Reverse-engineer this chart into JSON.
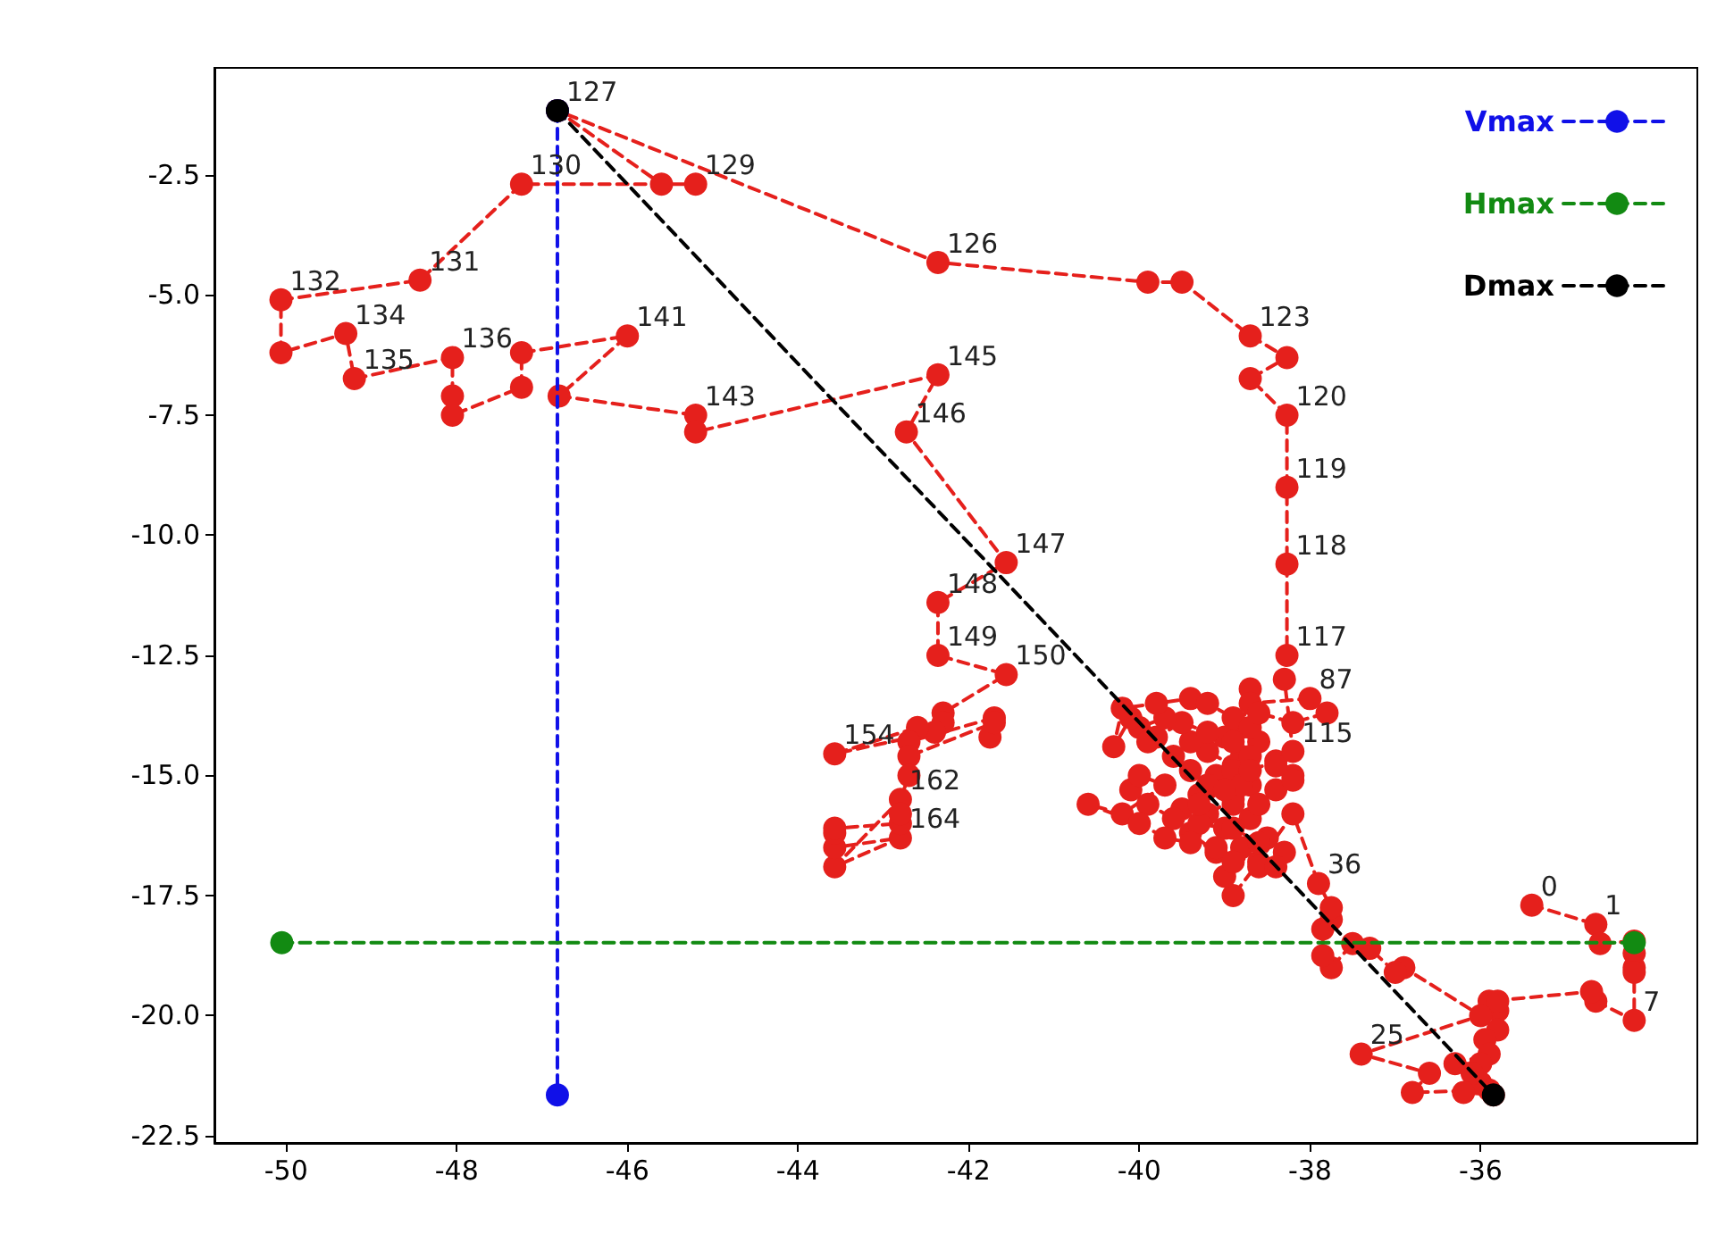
{
  "chart_data": {
    "type": "line",
    "x": [
      -35.4,
      -34.65,
      -34.6,
      -34.2,
      -34.2,
      -34.2,
      -34.2,
      -34.2,
      -34.65,
      -34.7,
      -35.9,
      -35.8,
      -35.8,
      -35.8,
      -35.95,
      -35.9,
      -36.3,
      -36.0,
      -36.0,
      -36.1,
      -35.85,
      -36.2,
      -35.9,
      -36.8,
      -36.6,
      -37.4,
      -36.0,
      -36.9,
      -37.0,
      -37.3,
      -37.5,
      -37.75,
      -37.85,
      -37.85,
      -37.75,
      -37.75,
      -37.9,
      -38.2,
      -38.6,
      -38.9,
      -39.0,
      -38.8,
      -38.5,
      -38.3,
      -38.6,
      -38.4,
      -39.1,
      -39.4,
      -39.2,
      -38.9,
      -38.7,
      -38.9,
      -39.2,
      -39.0,
      -38.8,
      -38.6,
      -38.8,
      -39.1,
      -39.3,
      -39.5,
      -39.3,
      -39.0,
      -38.7,
      -38.9,
      -39.2,
      -39.4,
      -39.6,
      -39.4,
      -39.2,
      -39.5,
      -39.8,
      -40.0,
      -39.7,
      -39.9,
      -40.1,
      -40.3,
      -40.2,
      -39.8,
      -39.4,
      -39.2,
      -38.9,
      -38.7,
      -38.9,
      -38.7,
      -38.9,
      -38.7,
      -38.7,
      -38.0,
      -37.8,
      -38.2,
      -38.6,
      -38.8,
      -38.6,
      -38.2,
      -38.4,
      -38.7,
      -39.0,
      -39.3,
      -39.6,
      -39.9,
      -40.1,
      -40.0,
      -39.7,
      -40.2,
      -40.6,
      -40.0,
      -39.7,
      -39.4,
      -39.1,
      -38.9,
      -38.6,
      -38.9,
      -38.4,
      -38.2,
      -38.4,
      -38.2,
      -38.3,
      -38.27,
      -38.27,
      -38.27,
      -38.27,
      -38.7,
      -38.27,
      -38.7,
      -39.5,
      -39.9,
      -42.36,
      -46.82,
      -45.6,
      -45.2,
      -47.24,
      -48.43,
      -50.06,
      -50.06,
      -49.3,
      -49.2,
      -48.05,
      -48.05,
      -48.05,
      -47.24,
      -47.24,
      -46.0,
      -46.8,
      -45.2,
      -45.2,
      -42.36,
      -42.73,
      -41.56,
      -42.36,
      -42.36,
      -41.56,
      -42.3,
      -42.3,
      -42.4,
      -43.57,
      -42.6,
      -42.7,
      -41.7,
      -41.75,
      -41.7,
      -42.7,
      -42.7,
      -42.8,
      -43.57,
      -42.8,
      -43.57,
      -43.57,
      -43.57,
      -42.8,
      -42.8
    ],
    "series": [
      {
        "color": "#e5201c",
        "values": [
          -17.7,
          -18.1,
          -18.5,
          -18.45,
          -18.7,
          -19.0,
          -19.1,
          -20.1,
          -19.7,
          -19.5,
          -19.7,
          -19.9,
          -19.7,
          -20.3,
          -20.5,
          -20.8,
          -21.0,
          -21.0,
          -21.4,
          -21.2,
          -21.65,
          -21.6,
          -21.55,
          -21.6,
          -21.2,
          -20.8,
          -20.0,
          -19.0,
          -19.1,
          -18.6,
          -18.5,
          -19.0,
          -18.75,
          -18.2,
          -18.0,
          -17.75,
          -17.25,
          -15.8,
          -16.8,
          -17.5,
          -17.1,
          -16.5,
          -16.3,
          -16.6,
          -16.9,
          -16.9,
          -16.6,
          -16.2,
          -15.8,
          -15.5,
          -15.2,
          -14.8,
          -14.5,
          -14.2,
          -14.0,
          -14.3,
          -14.6,
          -15.0,
          -15.4,
          -15.7,
          -16.0,
          -16.1,
          -15.9,
          -15.6,
          -15.2,
          -14.9,
          -14.6,
          -14.3,
          -14.1,
          -13.9,
          -14.2,
          -14.0,
          -13.8,
          -14.3,
          -13.8,
          -14.4,
          -13.6,
          -13.5,
          -13.4,
          -13.5,
          -13.8,
          -14.0,
          -14.3,
          -14.6,
          -14.9,
          -13.2,
          -13.5,
          -13.4,
          -13.7,
          -13.9,
          -13.7,
          -15.2,
          -15.6,
          -15.0,
          -14.7,
          -14.9,
          -15.3,
          -15.6,
          -15.9,
          -15.6,
          -15.3,
          -15.0,
          -15.2,
          -15.8,
          -15.6,
          -16.0,
          -16.3,
          -16.4,
          -16.5,
          -16.8,
          -16.4,
          -16.1,
          -15.3,
          -15.1,
          -14.8,
          -14.5,
          -13.0,
          -12.5,
          -10.6,
          -9.0,
          -7.5,
          -6.74,
          -6.3,
          -5.85,
          -4.73,
          -4.73,
          -4.32,
          -1.16,
          -2.69,
          -2.69,
          -2.69,
          -4.69,
          -5.1,
          -6.2,
          -5.8,
          -6.74,
          -6.3,
          -7.1,
          -7.5,
          -6.92,
          -6.2,
          -5.85,
          -7.1,
          -7.5,
          -7.85,
          -6.66,
          -7.85,
          -10.57,
          -11.4,
          -12.5,
          -12.9,
          -13.7,
          -13.9,
          -14.1,
          -14.55,
          -14.0,
          -14.3,
          -13.8,
          -14.2,
          -13.9,
          -14.6,
          -15.0,
          -15.5,
          -16.9,
          -16.3,
          -16.5,
          -16.2,
          -16.1,
          -16.0,
          -15.8
        ]
      },
      {
        "name": "Vmax",
        "color": "#1010e8",
        "x": [
          -46.82,
          -46.82
        ],
        "values": [
          -1.16,
          -21.65
        ]
      },
      {
        "name": "Hmax",
        "color": "#128a12",
        "x": [
          -50.05,
          -34.2
        ],
        "values": [
          -18.48,
          -18.48
        ]
      },
      {
        "name": "Dmax",
        "color": "#000000",
        "x": [
          -46.82,
          -35.85
        ],
        "values": [
          -1.16,
          -21.65
        ]
      }
    ],
    "xlim": [
      -50.84,
      -33.46
    ],
    "xticks": [
      -50,
      -48,
      -46,
      -44,
      -42,
      -40,
      -38,
      -36
    ],
    "ylim": [
      -22.65,
      -0.27
    ],
    "yticks": [
      {
        "value": -22.5,
        "label": "-22.5"
      },
      {
        "value": -20,
        "label": "-20.0"
      },
      {
        "value": -17.5,
        "label": "-17.5"
      },
      {
        "value": -15,
        "label": "-15.0"
      },
      {
        "value": -12.5,
        "label": "-12.5"
      },
      {
        "value": -10,
        "label": "-10.0"
      },
      {
        "value": -7.5,
        "label": "-7.5"
      },
      {
        "value": -5,
        "label": "-5.0"
      },
      {
        "value": -2.5,
        "label": "-2.5"
      }
    ],
    "annotations": [
      {
        "text": "0",
        "x": -35.4,
        "y": -17.7
      },
      {
        "text": "1",
        "x": -34.65,
        "y": -18.1
      },
      {
        "text": "7",
        "x": -34.2,
        "y": -20.1
      },
      {
        "text": "25",
        "x": -37.4,
        "y": -20.8
      },
      {
        "text": "36",
        "x": -37.9,
        "y": -17.25
      },
      {
        "text": "87",
        "x": -38.0,
        "y": -13.4
      },
      {
        "text": "115",
        "x": -38.2,
        "y": -14.5
      },
      {
        "text": "117",
        "x": -38.27,
        "y": -12.5
      },
      {
        "text": "118",
        "x": -38.27,
        "y": -10.6
      },
      {
        "text": "119",
        "x": -38.27,
        "y": -9.0
      },
      {
        "text": "120",
        "x": -38.27,
        "y": -7.5
      },
      {
        "text": "123",
        "x": -38.7,
        "y": -5.85
      },
      {
        "text": "126",
        "x": -42.36,
        "y": -4.32
      },
      {
        "text": "127",
        "x": -46.82,
        "y": -1.16
      },
      {
        "text": "129",
        "x": -45.2,
        "y": -2.69
      },
      {
        "text": "130",
        "x": -47.24,
        "y": -2.69
      },
      {
        "text": "131",
        "x": -48.43,
        "y": -4.69
      },
      {
        "text": "132",
        "x": -50.06,
        "y": -5.1
      },
      {
        "text": "134",
        "x": -49.3,
        "y": -5.8
      },
      {
        "text": "135",
        "x": -49.2,
        "y": -6.74
      },
      {
        "text": "136",
        "x": -48.05,
        "y": -6.3
      },
      {
        "text": "141",
        "x": -46.0,
        "y": -5.85
      },
      {
        "text": "143",
        "x": -45.2,
        "y": -7.5
      },
      {
        "text": "145",
        "x": -42.36,
        "y": -6.66
      },
      {
        "text": "146",
        "x": -42.73,
        "y": -7.85
      },
      {
        "text": "147",
        "x": -41.56,
        "y": -10.57
      },
      {
        "text": "148",
        "x": -42.36,
        "y": -11.4
      },
      {
        "text": "149",
        "x": -42.36,
        "y": -12.5
      },
      {
        "text": "150",
        "x": -41.56,
        "y": -12.9
      },
      {
        "text": "154",
        "x": -43.57,
        "y": -14.55
      },
      {
        "text": "162",
        "x": -42.8,
        "y": -15.5
      },
      {
        "text": "164",
        "x": -42.8,
        "y": -16.3
      }
    ],
    "legend": "top right",
    "marker": "circle",
    "line_style": "dashed"
  }
}
